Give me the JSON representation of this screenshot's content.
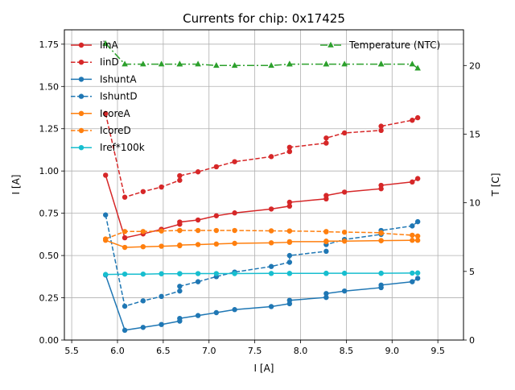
{
  "chart_data": {
    "type": "line",
    "title": "Currents for chip: 0x17425",
    "xlabel": "I [A]",
    "ylabel": "I [A]",
    "y2label": "T [C]",
    "xlim": [
      5.42,
      9.78
    ],
    "ylim": [
      0.0,
      1.835
    ],
    "y2lim": [
      0,
      22.6
    ],
    "xticks": [
      "5.5",
      "6.0",
      "6.5",
      "7.0",
      "7.5",
      "8.0",
      "8.5",
      "9.0",
      "9.5"
    ],
    "yticks": [
      "0.00",
      "0.25",
      "0.50",
      "0.75",
      "1.00",
      "1.25",
      "1.50",
      "1.75"
    ],
    "y2ticks": [
      "0",
      "5",
      "10",
      "15",
      "20"
    ],
    "grid": true,
    "legend_left_position": "upper-left",
    "legend_right_position": "upper-right",
    "x": [
      5.87,
      6.08,
      6.28,
      6.48,
      6.68,
      6.68,
      6.88,
      7.08,
      7.28,
      7.68,
      7.88,
      7.88,
      8.28,
      8.28,
      8.48,
      8.88,
      8.88,
      9.22,
      9.28
    ],
    "series": [
      {
        "name": "IinA",
        "axis": "left",
        "color": "#d62728",
        "dash": "solid",
        "values": [
          0.975,
          0.605,
          0.628,
          0.655,
          0.685,
          0.698,
          0.71,
          0.735,
          0.752,
          0.775,
          0.792,
          0.815,
          0.835,
          0.855,
          0.875,
          0.895,
          0.915,
          0.935,
          0.955
        ]
      },
      {
        "name": "IinD",
        "axis": "left",
        "color": "#d62728",
        "dash": "dashed",
        "values": [
          1.34,
          0.845,
          0.878,
          0.905,
          0.945,
          0.972,
          0.995,
          1.025,
          1.055,
          1.085,
          1.115,
          1.14,
          1.165,
          1.195,
          1.225,
          1.24,
          1.265,
          1.3,
          1.315
        ]
      },
      {
        "name": "IshuntA",
        "axis": "left",
        "color": "#1f77b4",
        "dash": "solid",
        "values": [
          0.385,
          0.058,
          0.075,
          0.092,
          0.112,
          0.128,
          0.145,
          0.162,
          0.18,
          0.198,
          0.215,
          0.235,
          0.252,
          0.275,
          0.29,
          0.31,
          0.325,
          0.345,
          0.365
        ]
      },
      {
        "name": "IshuntD",
        "axis": "left",
        "color": "#1f77b4",
        "dash": "dashed",
        "values": [
          0.74,
          0.2,
          0.232,
          0.258,
          0.29,
          0.318,
          0.345,
          0.375,
          0.402,
          0.435,
          0.46,
          0.5,
          0.525,
          0.565,
          0.595,
          0.625,
          0.648,
          0.675,
          0.7
        ]
      },
      {
        "name": "IcoreA",
        "axis": "left",
        "color": "#ff7f0e",
        "dash": "solid",
        "values": [
          0.59,
          0.548,
          0.552,
          0.555,
          0.558,
          0.562,
          0.565,
          0.568,
          0.572,
          0.575,
          0.578,
          0.582,
          0.582,
          0.585,
          0.585,
          0.588,
          0.588,
          0.59,
          0.59
        ]
      },
      {
        "name": "IcoreD",
        "axis": "left",
        "color": "#ff7f0e",
        "dash": "dashed",
        "values": [
          0.598,
          0.642,
          0.642,
          0.645,
          0.648,
          0.648,
          0.648,
          0.648,
          0.648,
          0.646,
          0.645,
          0.645,
          0.642,
          0.64,
          0.638,
          0.635,
          0.632,
          0.62,
          0.615
        ]
      },
      {
        "name": "Iref*100k",
        "axis": "left",
        "color": "#17becf",
        "dash": "solid",
        "values": [
          0.388,
          0.39,
          0.39,
          0.392,
          0.392,
          0.393,
          0.393,
          0.393,
          0.393,
          0.394,
          0.394,
          0.394,
          0.394,
          0.395,
          0.395,
          0.395,
          0.395,
          0.396,
          0.397
        ]
      },
      {
        "name": "Temperature (NTC)",
        "axis": "right",
        "color": "#2ca02c",
        "dash": "dashdot",
        "marker": "triangle",
        "values": [
          21.6,
          20.1,
          20.1,
          20.1,
          20.1,
          20.1,
          20.1,
          20.0,
          20.0,
          20.0,
          20.1,
          20.1,
          20.1,
          20.1,
          20.1,
          20.1,
          20.1,
          20.1,
          19.8
        ]
      }
    ]
  }
}
